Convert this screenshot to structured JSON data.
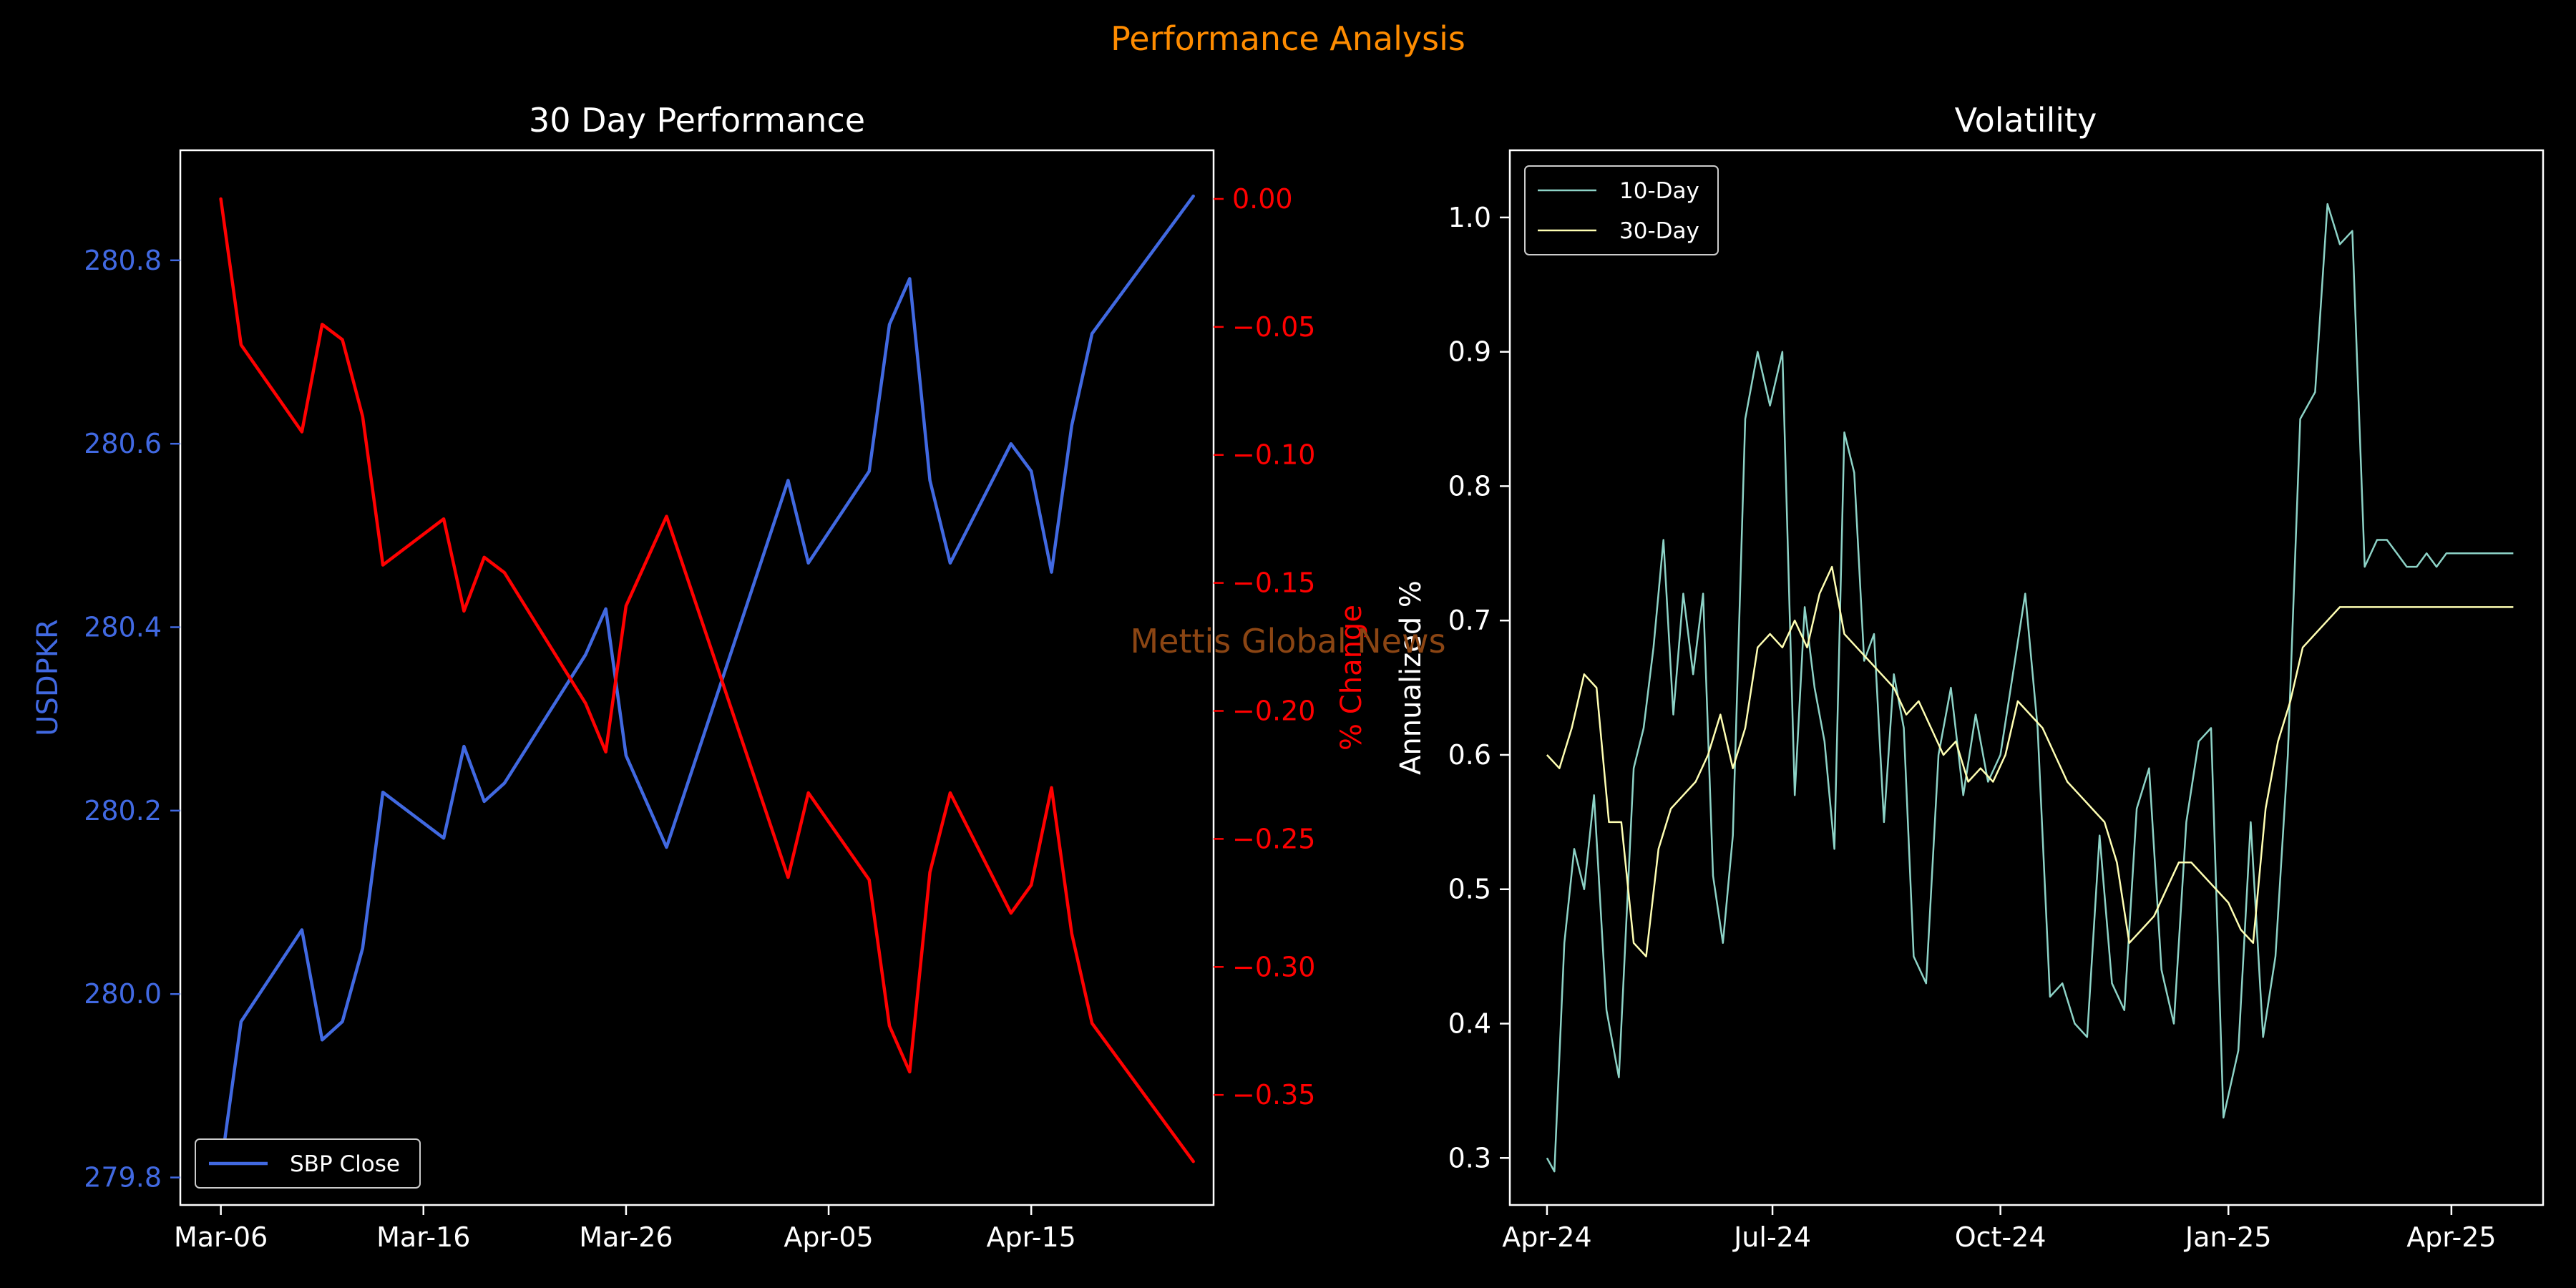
{
  "figure": {
    "suptitle": "Performance Analysis",
    "watermark": "Mettis Global News",
    "background": "#000000",
    "suptitle_color": "#ff8c00",
    "watermark_color": "#8b4513"
  },
  "chart_data": [
    {
      "type": "line",
      "title": "30 Day Performance",
      "xlabel": "",
      "ylabel": "USDPKR",
      "ylabel_right": "% Change",
      "x_ticks": [
        "Mar-06",
        "Mar-16",
        "Mar-26",
        "Apr-05",
        "Apr-15"
      ],
      "x_tick_values": [
        "2025-03-06",
        "2025-03-16",
        "2025-03-26",
        "2025-04-05",
        "2025-04-15"
      ],
      "xlim": [
        "2025-03-04",
        "2025-04-24"
      ],
      "ylim": [
        279.77,
        280.92
      ],
      "ylim_right": [
        -0.393,
        0.019
      ],
      "y_ticks": [
        279.8,
        280.0,
        280.2,
        280.4,
        280.6,
        280.8
      ],
      "y_ticks_right": [
        0.0,
        -0.05,
        -0.1,
        -0.15,
        -0.2,
        -0.25,
        -0.3,
        -0.35
      ],
      "left_axis_color": "#4169e1",
      "right_axis_color": "#ff0000",
      "legend": {
        "position": "lower left",
        "entries": [
          "SBP Close"
        ]
      },
      "grid": false,
      "series": [
        {
          "name": "SBP Close",
          "axis": "left",
          "color": "#4169e1",
          "x": [
            "2025-03-06",
            "2025-03-07",
            "2025-03-10",
            "2025-03-11",
            "2025-03-12",
            "2025-03-13",
            "2025-03-14",
            "2025-03-17",
            "2025-03-18",
            "2025-03-19",
            "2025-03-20",
            "2025-03-24",
            "2025-03-25",
            "2025-03-26",
            "2025-03-28",
            "2025-04-03",
            "2025-04-04",
            "2025-04-07",
            "2025-04-08",
            "2025-04-09",
            "2025-04-10",
            "2025-04-11",
            "2025-04-14",
            "2025-04-15",
            "2025-04-16",
            "2025-04-17",
            "2025-04-18",
            "2025-04-23"
          ],
          "values": [
            279.81,
            279.97,
            280.07,
            279.95,
            279.97,
            280.05,
            280.22,
            280.17,
            280.27,
            280.21,
            280.23,
            280.37,
            280.42,
            280.26,
            280.16,
            280.56,
            280.47,
            280.57,
            280.73,
            280.78,
            280.56,
            280.47,
            280.6,
            280.57,
            280.46,
            280.62,
            280.72,
            280.87
          ]
        },
        {
          "name": "% Change",
          "axis": "right",
          "color": "#ff0000",
          "x": [
            "2025-03-06",
            "2025-03-07",
            "2025-03-10",
            "2025-03-11",
            "2025-03-12",
            "2025-03-13",
            "2025-03-14",
            "2025-03-17",
            "2025-03-18",
            "2025-03-19",
            "2025-03-20",
            "2025-03-24",
            "2025-03-25",
            "2025-03-26",
            "2025-03-28",
            "2025-04-03",
            "2025-04-04",
            "2025-04-07",
            "2025-04-08",
            "2025-04-09",
            "2025-04-10",
            "2025-04-11",
            "2025-04-14",
            "2025-04-15",
            "2025-04-16",
            "2025-04-17",
            "2025-04-18",
            "2025-04-23"
          ],
          "values": [
            0.0,
            -0.057,
            -0.091,
            -0.049,
            -0.055,
            -0.085,
            -0.143,
            -0.125,
            -0.161,
            -0.14,
            -0.146,
            -0.197,
            -0.216,
            -0.159,
            -0.124,
            -0.265,
            -0.232,
            -0.266,
            -0.323,
            -0.341,
            -0.263,
            -0.232,
            -0.279,
            -0.268,
            -0.23,
            -0.287,
            -0.322,
            -0.376
          ]
        }
      ]
    },
    {
      "type": "line",
      "title": "Volatility",
      "xlabel": "",
      "ylabel": "Annualized %",
      "x_ticks": [
        "Apr-24",
        "Jul-24",
        "Oct-24",
        "Jan-25",
        "Apr-25"
      ],
      "x_tick_values": [
        "2024-04-01",
        "2024-07-01",
        "2024-10-01",
        "2025-01-01",
        "2025-04-01"
      ],
      "xlim": [
        "2024-03-17",
        "2025-05-08"
      ],
      "ylim": [
        0.265,
        1.05
      ],
      "y_ticks": [
        0.3,
        0.4,
        0.5,
        0.6,
        0.7,
        0.8,
        0.9,
        1.0
      ],
      "legend": {
        "position": "upper left",
        "entries": [
          "10-Day",
          "30-Day"
        ]
      },
      "grid": false,
      "series": [
        {
          "name": "10-Day",
          "color": "#8dd3c7",
          "x": [
            "2024-04-01",
            "2024-04-04",
            "2024-04-08",
            "2024-04-12",
            "2024-04-16",
            "2024-04-20",
            "2024-04-25",
            "2024-04-30",
            "2024-05-06",
            "2024-05-10",
            "2024-05-14",
            "2024-05-18",
            "2024-05-22",
            "2024-05-26",
            "2024-05-30",
            "2024-06-03",
            "2024-06-07",
            "2024-06-11",
            "2024-06-15",
            "2024-06-20",
            "2024-06-25",
            "2024-06-30",
            "2024-07-05",
            "2024-07-10",
            "2024-07-14",
            "2024-07-18",
            "2024-07-22",
            "2024-07-26",
            "2024-07-30",
            "2024-08-03",
            "2024-08-07",
            "2024-08-11",
            "2024-08-15",
            "2024-08-19",
            "2024-08-23",
            "2024-08-27",
            "2024-09-01",
            "2024-09-06",
            "2024-09-11",
            "2024-09-16",
            "2024-09-21",
            "2024-09-26",
            "2024-10-01",
            "2024-10-06",
            "2024-10-11",
            "2024-10-16",
            "2024-10-21",
            "2024-10-26",
            "2024-10-31",
            "2024-11-05",
            "2024-11-10",
            "2024-11-15",
            "2024-11-20",
            "2024-11-25",
            "2024-11-30",
            "2024-12-05",
            "2024-12-10",
            "2024-12-15",
            "2024-12-20",
            "2024-12-25",
            "2024-12-30",
            "2025-01-05",
            "2025-01-10",
            "2025-01-15",
            "2025-01-20",
            "2025-01-25",
            "2025-01-30",
            "2025-02-05",
            "2025-02-10",
            "2025-02-15",
            "2025-02-20",
            "2025-02-25",
            "2025-03-02",
            "2025-03-06",
            "2025-03-10",
            "2025-03-14",
            "2025-03-18",
            "2025-03-22",
            "2025-03-26",
            "2025-03-30",
            "2025-04-03",
            "2025-04-07",
            "2025-04-11",
            "2025-04-14",
            "2025-04-17",
            "2025-04-20",
            "2025-04-23",
            "2025-04-26"
          ],
          "values": [
            0.3,
            0.29,
            0.46,
            0.53,
            0.5,
            0.57,
            0.41,
            0.36,
            0.59,
            0.62,
            0.68,
            0.76,
            0.63,
            0.72,
            0.66,
            0.72,
            0.51,
            0.46,
            0.54,
            0.85,
            0.9,
            0.86,
            0.9,
            0.57,
            0.71,
            0.65,
            0.61,
            0.53,
            0.84,
            0.81,
            0.67,
            0.69,
            0.55,
            0.66,
            0.62,
            0.45,
            0.43,
            0.6,
            0.65,
            0.57,
            0.63,
            0.58,
            0.6,
            0.66,
            0.72,
            0.62,
            0.42,
            0.43,
            0.4,
            0.39,
            0.54,
            0.43,
            0.41,
            0.56,
            0.59,
            0.44,
            0.4,
            0.55,
            0.61,
            0.62,
            0.33,
            0.38,
            0.55,
            0.39,
            0.45,
            0.6,
            0.85,
            0.87,
            1.01,
            0.98,
            0.99,
            0.74,
            0.76,
            0.76,
            0.75,
            0.74,
            0.74,
            0.75,
            0.74,
            0.75,
            0.75,
            0.75,
            0.75,
            0.75,
            0.75,
            0.75,
            0.75,
            0.75
          ]
        },
        {
          "name": "30-Day",
          "color": "#ffffb3",
          "x": [
            "2024-04-01",
            "2024-04-06",
            "2024-04-11",
            "2024-04-16",
            "2024-04-21",
            "2024-04-26",
            "2024-05-01",
            "2024-05-06",
            "2024-05-11",
            "2024-05-16",
            "2024-05-21",
            "2024-05-26",
            "2024-05-31",
            "2024-06-05",
            "2024-06-10",
            "2024-06-15",
            "2024-06-20",
            "2024-06-25",
            "2024-06-30",
            "2024-07-05",
            "2024-07-10",
            "2024-07-15",
            "2024-07-20",
            "2024-07-25",
            "2024-07-30",
            "2024-08-04",
            "2024-08-09",
            "2024-08-14",
            "2024-08-19",
            "2024-08-24",
            "2024-08-29",
            "2024-09-03",
            "2024-09-08",
            "2024-09-13",
            "2024-09-18",
            "2024-09-23",
            "2024-09-28",
            "2024-10-03",
            "2024-10-08",
            "2024-10-13",
            "2024-10-18",
            "2024-10-23",
            "2024-10-28",
            "2024-11-02",
            "2024-11-07",
            "2024-11-12",
            "2024-11-17",
            "2024-11-22",
            "2024-11-27",
            "2024-12-02",
            "2024-12-07",
            "2024-12-12",
            "2024-12-17",
            "2024-12-22",
            "2024-12-27",
            "2025-01-01",
            "2025-01-06",
            "2025-01-11",
            "2025-01-16",
            "2025-01-21",
            "2025-01-26",
            "2025-01-31",
            "2025-02-05",
            "2025-02-10",
            "2025-02-15",
            "2025-02-20",
            "2025-02-25",
            "2025-03-02",
            "2025-03-07",
            "2025-03-12",
            "2025-03-17",
            "2025-03-22",
            "2025-03-27",
            "2025-04-01",
            "2025-04-06",
            "2025-04-11",
            "2025-04-16",
            "2025-04-21",
            "2025-04-26"
          ],
          "values": [
            0.6,
            0.59,
            0.62,
            0.66,
            0.65,
            0.55,
            0.55,
            0.46,
            0.45,
            0.53,
            0.56,
            0.57,
            0.58,
            0.6,
            0.63,
            0.59,
            0.62,
            0.68,
            0.69,
            0.68,
            0.7,
            0.68,
            0.72,
            0.74,
            0.69,
            0.68,
            0.67,
            0.66,
            0.65,
            0.63,
            0.64,
            0.62,
            0.6,
            0.61,
            0.58,
            0.59,
            0.58,
            0.6,
            0.64,
            0.63,
            0.62,
            0.6,
            0.58,
            0.57,
            0.56,
            0.55,
            0.52,
            0.46,
            0.47,
            0.48,
            0.5,
            0.52,
            0.52,
            0.51,
            0.5,
            0.49,
            0.47,
            0.46,
            0.56,
            0.61,
            0.64,
            0.68,
            0.69,
            0.7,
            0.71,
            0.71,
            0.71,
            0.71,
            0.71,
            0.71,
            0.71,
            0.71,
            0.71,
            0.71,
            0.71,
            0.71,
            0.71,
            0.71,
            0.71
          ]
        }
      ]
    }
  ]
}
